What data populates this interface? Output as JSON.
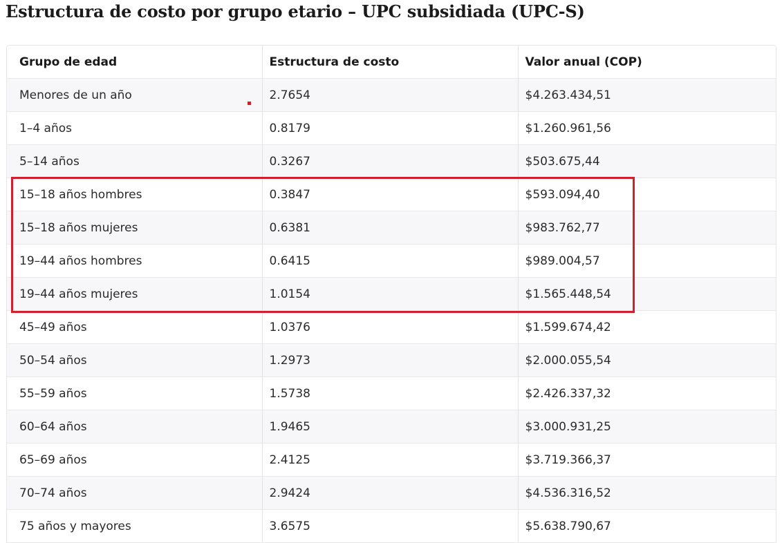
{
  "title": "Estructura de costo por grupo etario – UPC subsidiada (UPC-S)",
  "table": {
    "headers": [
      "Grupo de edad",
      "Estructura de costo",
      "Valor anual (COP)"
    ],
    "rows": [
      [
        "Menores de un año",
        "2.7654",
        "$4.263.434,51"
      ],
      [
        "1–4 años",
        "0.8179",
        "$1.260.961,56"
      ],
      [
        "5–14 años",
        "0.3267",
        "$503.675,44"
      ],
      [
        "15–18 años hombres",
        "0.3847",
        "$593.094,40"
      ],
      [
        "15–18 años mujeres",
        "0.6381",
        "$983.762,77"
      ],
      [
        "19–44 años hombres",
        "0.6415",
        "$989.004,57"
      ],
      [
        "19–44 años mujeres",
        "1.0154",
        "$1.565.448,54"
      ],
      [
        "45–49 años",
        "1.0376",
        "$1.599.674,42"
      ],
      [
        "50–54 años",
        "1.2973",
        "$2.000.055,54"
      ],
      [
        "55–59 años",
        "1.5738",
        "$2.426.337,32"
      ],
      [
        "60–64 años",
        "1.9465",
        "$3.000.931,25"
      ],
      [
        "65–69 años",
        "2.4125",
        "$3.719.366,37"
      ],
      [
        "70–74 años",
        "2.9424",
        "$4.536.316,52"
      ],
      [
        "75 años y mayores",
        "3.6575",
        "$5.638.790,67"
      ]
    ],
    "highlighted_rows": [
      3,
      4,
      5,
      6
    ]
  },
  "colors": {
    "highlight": "#d0202e",
    "stripe": "#f7f7f9",
    "border": "#e6e6e6"
  }
}
